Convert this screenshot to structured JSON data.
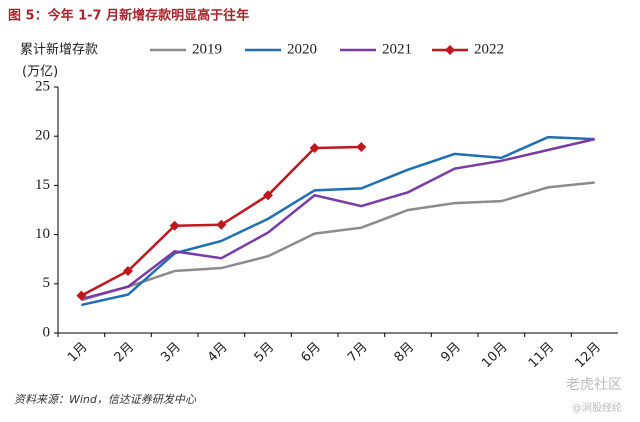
{
  "chart_data": {
    "type": "line",
    "title": "图 5：今年 1-7 月新增存款明显高于往年",
    "legend_title": "累计新增存款",
    "y_label": "(万亿)",
    "source": "资料来源：Wind，信达证券研发中心",
    "watermark": "老虎社区",
    "watermark_author": "@涧股经纶",
    "categories": [
      "1月",
      "2月",
      "3月",
      "4月",
      "5月",
      "6月",
      "7月",
      "8月",
      "9月",
      "10月",
      "11月",
      "12月"
    ],
    "series": [
      {
        "name": "2019",
        "color": "#8c8c8c",
        "values": [
          3.35,
          4.7,
          6.3,
          6.6,
          7.8,
          10.1,
          10.7,
          12.5,
          13.2,
          13.4,
          14.8,
          15.3
        ]
      },
      {
        "name": "2020",
        "color": "#1f6fb4",
        "values": [
          2.85,
          3.9,
          8.1,
          9.35,
          11.6,
          14.5,
          14.7,
          16.6,
          18.2,
          17.8,
          19.9,
          19.7
        ]
      },
      {
        "name": "2021",
        "color": "#7a3aa8",
        "values": [
          3.45,
          4.7,
          8.3,
          7.6,
          10.2,
          14.0,
          12.9,
          14.3,
          16.7,
          17.5,
          18.6,
          19.7
        ]
      },
      {
        "name": "2022",
        "color": "#c0161e",
        "marker": "diamond",
        "values": [
          3.8,
          6.3,
          10.9,
          11.0,
          14.0,
          18.8,
          18.9,
          null,
          null,
          null,
          null,
          null
        ]
      }
    ],
    "ylim": [
      0,
      25
    ],
    "yticks": [
      0,
      5,
      10,
      15,
      20,
      25
    ],
    "grid": false
  }
}
